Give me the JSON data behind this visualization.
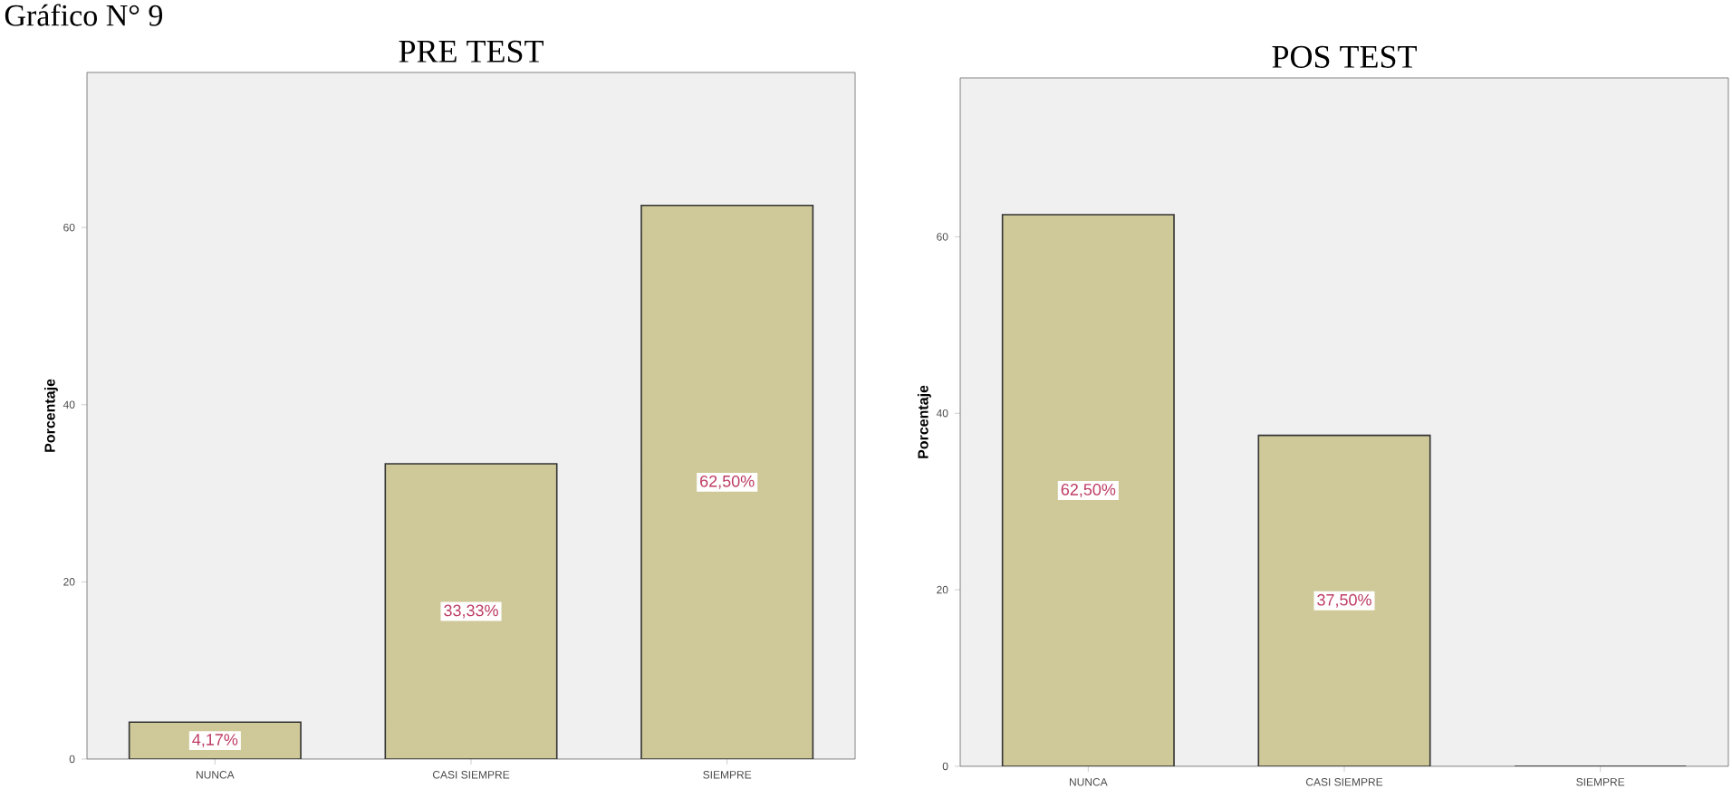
{
  "chart_data": [
    {
      "type": "bar",
      "title": "PRE TEST",
      "annotations": [
        "Gráfico N° 9"
      ],
      "ylabel": "Porcentaje",
      "categories": [
        "NUNCA",
        "CASI SIEMPRE",
        "SIEMPRE"
      ],
      "values": [
        4.17,
        33.33,
        62.5
      ],
      "value_labels": [
        "4,17%",
        "33,33%",
        "62,50%"
      ],
      "color": "#cfc999",
      "ylim": [
        0,
        77.5
      ],
      "yticks": [
        0,
        20,
        40,
        60
      ]
    },
    {
      "type": "bar",
      "title": "POS TEST",
      "ylabel": "Porcentaje",
      "categories": [
        "NUNCA",
        "CASI SIEMPRE",
        "SIEMPRE"
      ],
      "values": [
        62.5,
        37.5,
        0
      ],
      "value_labels": [
        "62,50%",
        "37,50%",
        null
      ],
      "color": "#cfc999",
      "ylim": [
        0,
        78
      ],
      "yticks": [
        0,
        20,
        40,
        60
      ]
    }
  ]
}
